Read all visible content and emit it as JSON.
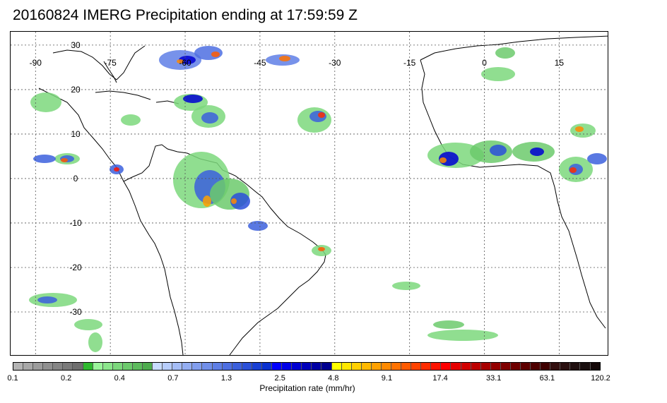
{
  "title": "20160824 IMERG Precipitation ending at 17:59:59 Z",
  "map": {
    "lon_labels": [
      "-90",
      "-75",
      "-60",
      "-45",
      "-30",
      "-15",
      "0",
      "15"
    ],
    "lat_labels": [
      "30",
      "20",
      "10",
      "0",
      "-10",
      "-20",
      "-30"
    ],
    "lon_range": [
      -95,
      25
    ],
    "lat_range": [
      -40,
      33
    ]
  },
  "colorbar": {
    "colors": [
      "#b4b4b4",
      "#a8a8a8",
      "#9c9c9c",
      "#909090",
      "#858585",
      "#7a7a7a",
      "#6e6e6e",
      "#2fb92f",
      "#9af59a",
      "#8be68b",
      "#7cd87c",
      "#6cca6c",
      "#5dbb5d",
      "#4eac4e",
      "#c8dcff",
      "#b7cdfb",
      "#a5bdf6",
      "#94aef2",
      "#829eee",
      "#718fea",
      "#5f7fe6",
      "#4e6fe2",
      "#3c60dd",
      "#2b50d9",
      "#1940d5",
      "#0a31d1",
      "#0000ff",
      "#0000e8",
      "#0000d2",
      "#0000bb",
      "#0000a5",
      "#000090",
      "#ffff00",
      "#ffe800",
      "#ffd000",
      "#ffb900",
      "#ffa100",
      "#ff8a00",
      "#ff7200",
      "#ff5b00",
      "#ff4300",
      "#ff2c00",
      "#ff1400",
      "#ff0000",
      "#e60000",
      "#d20000",
      "#bd0000",
      "#a80000",
      "#940000",
      "#7f0000",
      "#6e0000",
      "#5e0000",
      "#4e0000",
      "#3e0000",
      "#331010",
      "#2a1010",
      "#201010",
      "#1a1010",
      "#140808"
    ],
    "ticks": [
      "0.1",
      "0.2",
      "0.4",
      "0.7",
      "1.3",
      "2.5",
      "4.8",
      "9.1",
      "17.4",
      "33.1",
      "63.1",
      "120.2"
    ],
    "label": "Precipitation rate (mm/hr)"
  }
}
